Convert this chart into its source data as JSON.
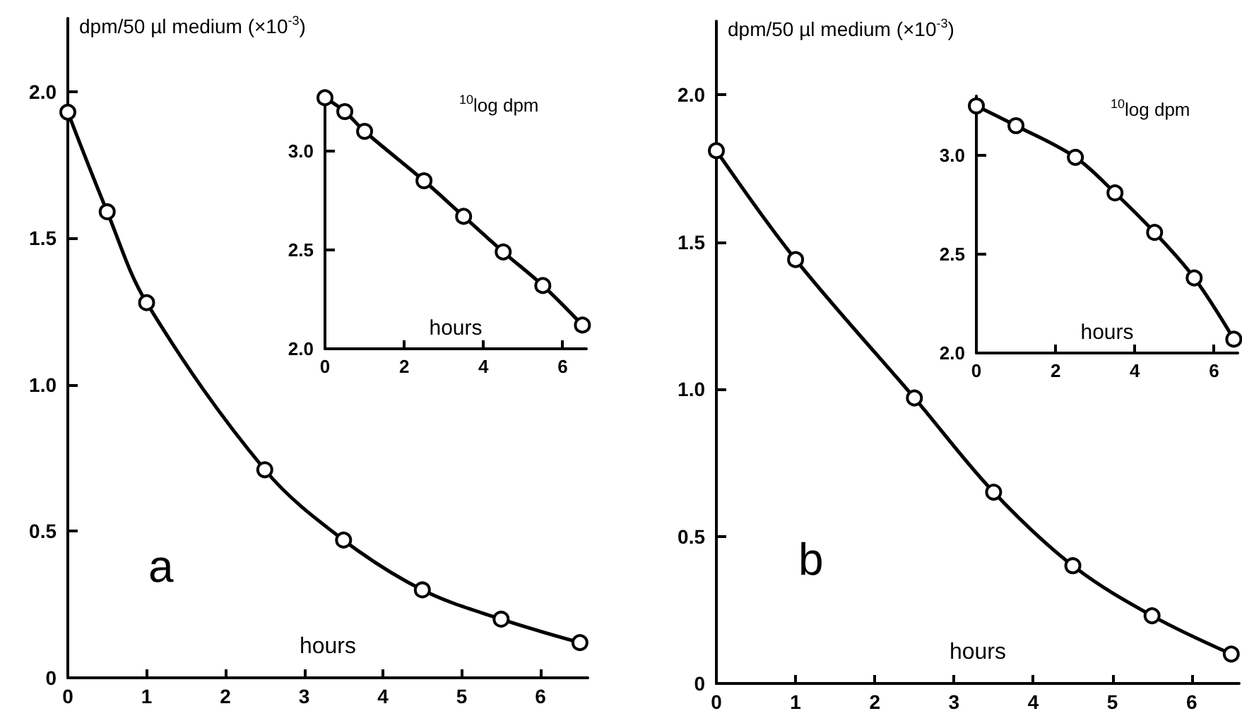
{
  "chart_data": [
    {
      "type": "line",
      "ylabel": "dpm/50 µl medium (×10$^{-3}$)",
      "xlabel": "hours",
      "annotations": [
        "a"
      ],
      "color": "#000000",
      "marker": "circle",
      "x": [
        0,
        0.5,
        1,
        2.5,
        3.5,
        4.5,
        5.5,
        6.5
      ],
      "values": [
        1.93,
        1.59,
        1.28,
        0.71,
        0.47,
        0.3,
        0.2,
        0.12
      ],
      "xlim": [
        0,
        6.6
      ],
      "ylim": [
        0,
        2.25
      ],
      "xticks": [
        0,
        1,
        2,
        3,
        4,
        5,
        6
      ],
      "yticks": [
        0,
        {
          "value": 0.5,
          "label": "0.5"
        },
        {
          "value": 1,
          "label": "1.0"
        },
        {
          "value": 1.5,
          "label": "1.5"
        },
        {
          "value": 2,
          "label": "2.0"
        }
      ]
    },
    {
      "type": "line",
      "ylabel": "$^{10}$log dpm",
      "xlabel": "hours",
      "color": "#000000",
      "marker": "circle",
      "x": [
        0,
        0.5,
        1,
        2.5,
        3.5,
        4.5,
        5.5,
        6.5
      ],
      "values": [
        3.27,
        3.2,
        3.1,
        2.85,
        2.67,
        2.49,
        2.32,
        2.12
      ],
      "xlim": [
        0,
        6.6
      ],
      "ylim": [
        2,
        3.3
      ],
      "xticks": [
        0,
        2,
        4,
        6
      ],
      "yticks": [
        {
          "value": 2,
          "label": "2.0"
        },
        {
          "value": 2.5,
          "label": "2.5"
        },
        {
          "value": 3,
          "label": "3.0"
        }
      ]
    },
    {
      "type": "line",
      "ylabel": "dpm/50 µl medium (×10$^{-3}$)",
      "xlabel": "hours",
      "annotations": [
        "b"
      ],
      "color": "#000000",
      "marker": "circle",
      "x": [
        0,
        1,
        2.5,
        3.5,
        4.5,
        5.5,
        6.5
      ],
      "values": [
        1.81,
        1.44,
        0.97,
        0.65,
        0.4,
        0.23,
        0.1
      ],
      "xlim": [
        0,
        6.6
      ],
      "ylim": [
        0,
        2.25
      ],
      "xticks": [
        0,
        1,
        2,
        3,
        4,
        5,
        6
      ],
      "yticks": [
        0,
        {
          "value": 0.5,
          "label": "0.5"
        },
        {
          "value": 1,
          "label": "1.0"
        },
        {
          "value": 1.5,
          "label": "1.5"
        },
        {
          "value": 2,
          "label": "2.0"
        }
      ]
    },
    {
      "type": "line",
      "ylabel": "$^{10}$log dpm",
      "xlabel": "hours",
      "color": "#000000",
      "marker": "circle",
      "x": [
        0,
        1,
        2.5,
        3.5,
        4.5,
        5.5,
        6.5
      ],
      "values": [
        3.25,
        3.15,
        2.99,
        2.81,
        2.61,
        2.38,
        2.07
      ],
      "xlim": [
        0,
        6.6
      ],
      "ylim": [
        2,
        3.3
      ],
      "xticks": [
        0,
        2,
        4,
        6
      ],
      "yticks": [
        {
          "value": 2,
          "label": "2.0"
        },
        {
          "value": 2.5,
          "label": "2.5"
        },
        {
          "value": 3,
          "label": "3.0"
        }
      ]
    }
  ]
}
